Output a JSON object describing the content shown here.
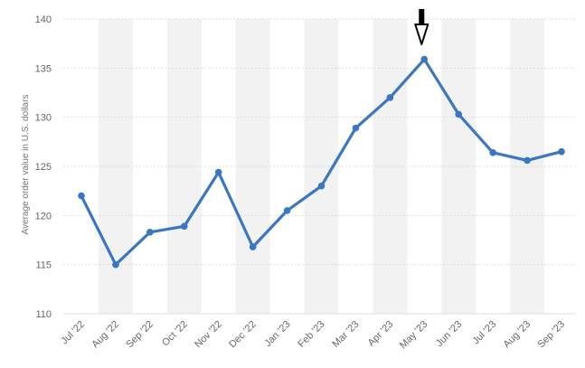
{
  "chart_data": {
    "type": "line",
    "ylabel": "Average order value in U.S. dollars",
    "ylim": [
      110,
      140
    ],
    "yticks": [
      110,
      115,
      120,
      125,
      130,
      135,
      140
    ],
    "grid": true,
    "categories": [
      "Jul '22",
      "Aug '22",
      "Sep '22",
      "Oct '22",
      "Nov '22",
      "Dec '22",
      "Jan '23",
      "Feb '23",
      "Mar '23",
      "Apr '23",
      "May '23",
      "Jun '23",
      "Jul '23",
      "Aug '23",
      "Sep '23"
    ],
    "series": [
      {
        "values": [
          122.0,
          115.0,
          118.3,
          118.9,
          124.4,
          116.8,
          120.5,
          123.0,
          128.9,
          132.0,
          135.9,
          130.3,
          126.4,
          125.6,
          126.5
        ]
      }
    ],
    "annotation": {
      "type": "arrow-pointing-down",
      "target_category": "May '23"
    },
    "colors": {
      "line": "#3a76c4",
      "band": "#f2f2f2",
      "grid": "#dddddd",
      "arrow": "#000000"
    }
  }
}
